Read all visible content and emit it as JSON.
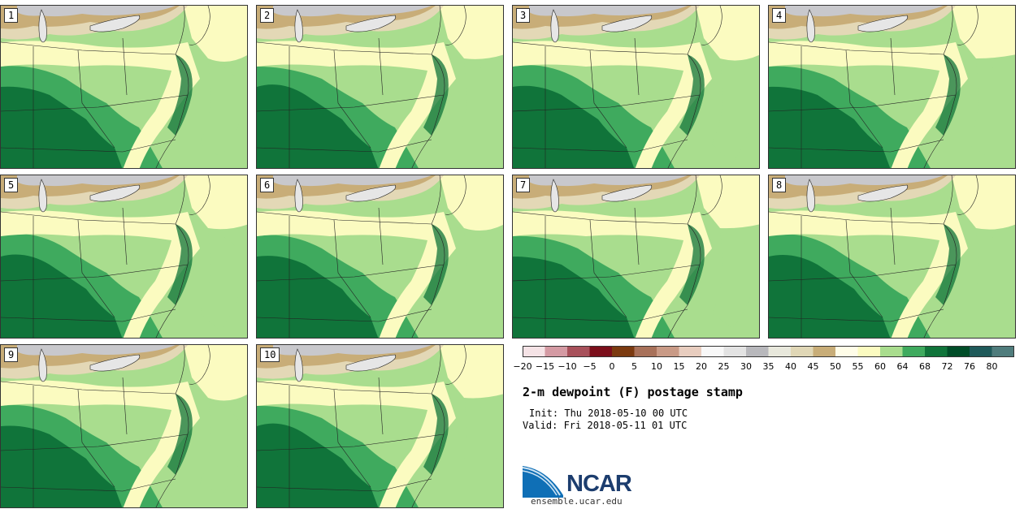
{
  "panels": [
    {
      "label": "1"
    },
    {
      "label": "2"
    },
    {
      "label": "3"
    },
    {
      "label": "4"
    },
    {
      "label": "5"
    },
    {
      "label": "6"
    },
    {
      "label": "7"
    },
    {
      "label": "8"
    },
    {
      "label": "9"
    },
    {
      "label": "10"
    }
  ],
  "colorbar": {
    "ticks": [
      "-20",
      "-15",
      "-10",
      "-5",
      "0",
      "5",
      "10",
      "15",
      "20",
      "25",
      "30",
      "35",
      "40",
      "45",
      "50",
      "55",
      "60",
      "64",
      "68",
      "72",
      "76",
      "80"
    ],
    "colors": [
      "#f5e3e6",
      "#d49aa3",
      "#a8515b",
      "#7b0f1b",
      "#7b3a10",
      "#a8715a",
      "#c99a86",
      "#e8cdbf",
      "#f8f8f8",
      "#e3e3e3",
      "#b8b8bc",
      "#e8e8dc",
      "#e0d7b6",
      "#c8ad78",
      "#fffde8",
      "#fbfbc0",
      "#a9dd8e",
      "#3faa5e",
      "#10743a",
      "#004d28",
      "#1f5a5a",
      "#4f7c7c"
    ]
  },
  "title": "2-m dewpoint (F) postage stamp",
  "init": "Init: Thu 2018-05-10 00 UTC",
  "valid": "Valid: Fri 2018-05-11 01 UTC",
  "logo": {
    "text": "NCAR",
    "website": "ensemble.ucar.edu"
  },
  "map_colors": {
    "north_gray": "#c8c8cc",
    "lake": "#e6e6e6",
    "tan": "#c8ad78",
    "light_tan": "#e3d8b6",
    "cream": "#fbfbc0",
    "light_green": "#a9dd8e",
    "mid_green": "#3faa5e",
    "dark_green": "#10743a",
    "ocean_light": "#a9dd8e",
    "lines": "#222222"
  }
}
